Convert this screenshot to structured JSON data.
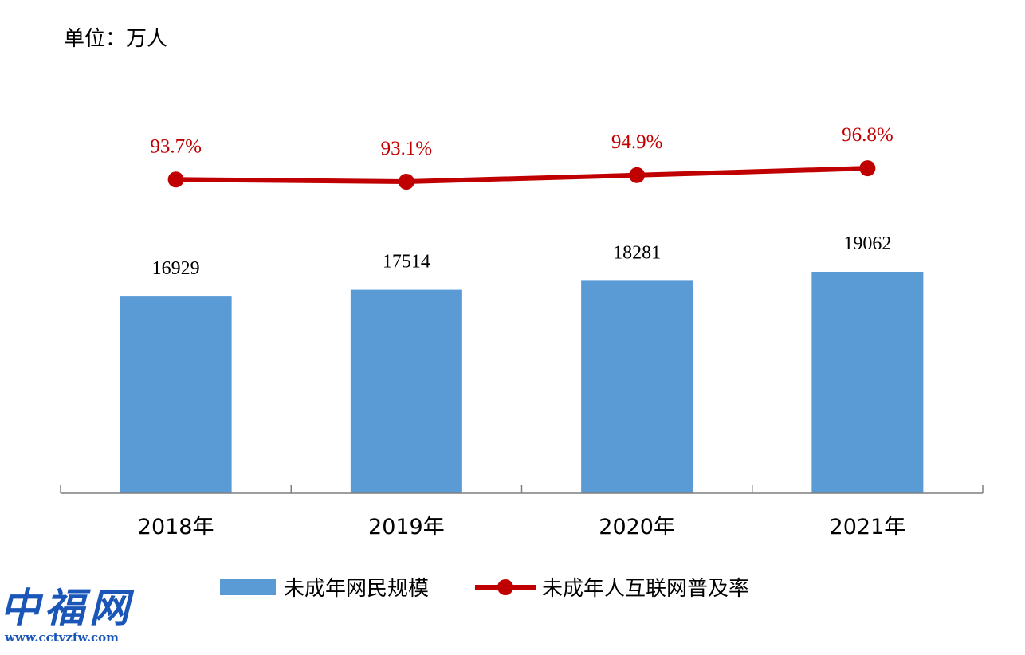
{
  "unit_label": "单位：万人",
  "colors": {
    "bar": "#5b9bd5",
    "line": "#c00000",
    "axis": "#7f7f7f"
  },
  "chart_data": {
    "type": "bar",
    "categories": [
      "2018年",
      "2019年",
      "2020年",
      "2021年"
    ],
    "series": [
      {
        "name": "未成年网民规模",
        "type": "bar",
        "values": [
          16929,
          17514,
          18281,
          19062
        ],
        "labels": [
          "16929",
          "17514",
          "18281",
          "19062"
        ]
      },
      {
        "name": "未成年人互联网普及率",
        "type": "line",
        "values": [
          93.7,
          93.1,
          94.9,
          96.8
        ],
        "labels": [
          "93.7%",
          "93.1%",
          "94.9%",
          "96.8%"
        ]
      }
    ],
    "legend_position": "bottom"
  },
  "watermark": {
    "text": "中福网",
    "url": "www.cctvzfw.com"
  }
}
